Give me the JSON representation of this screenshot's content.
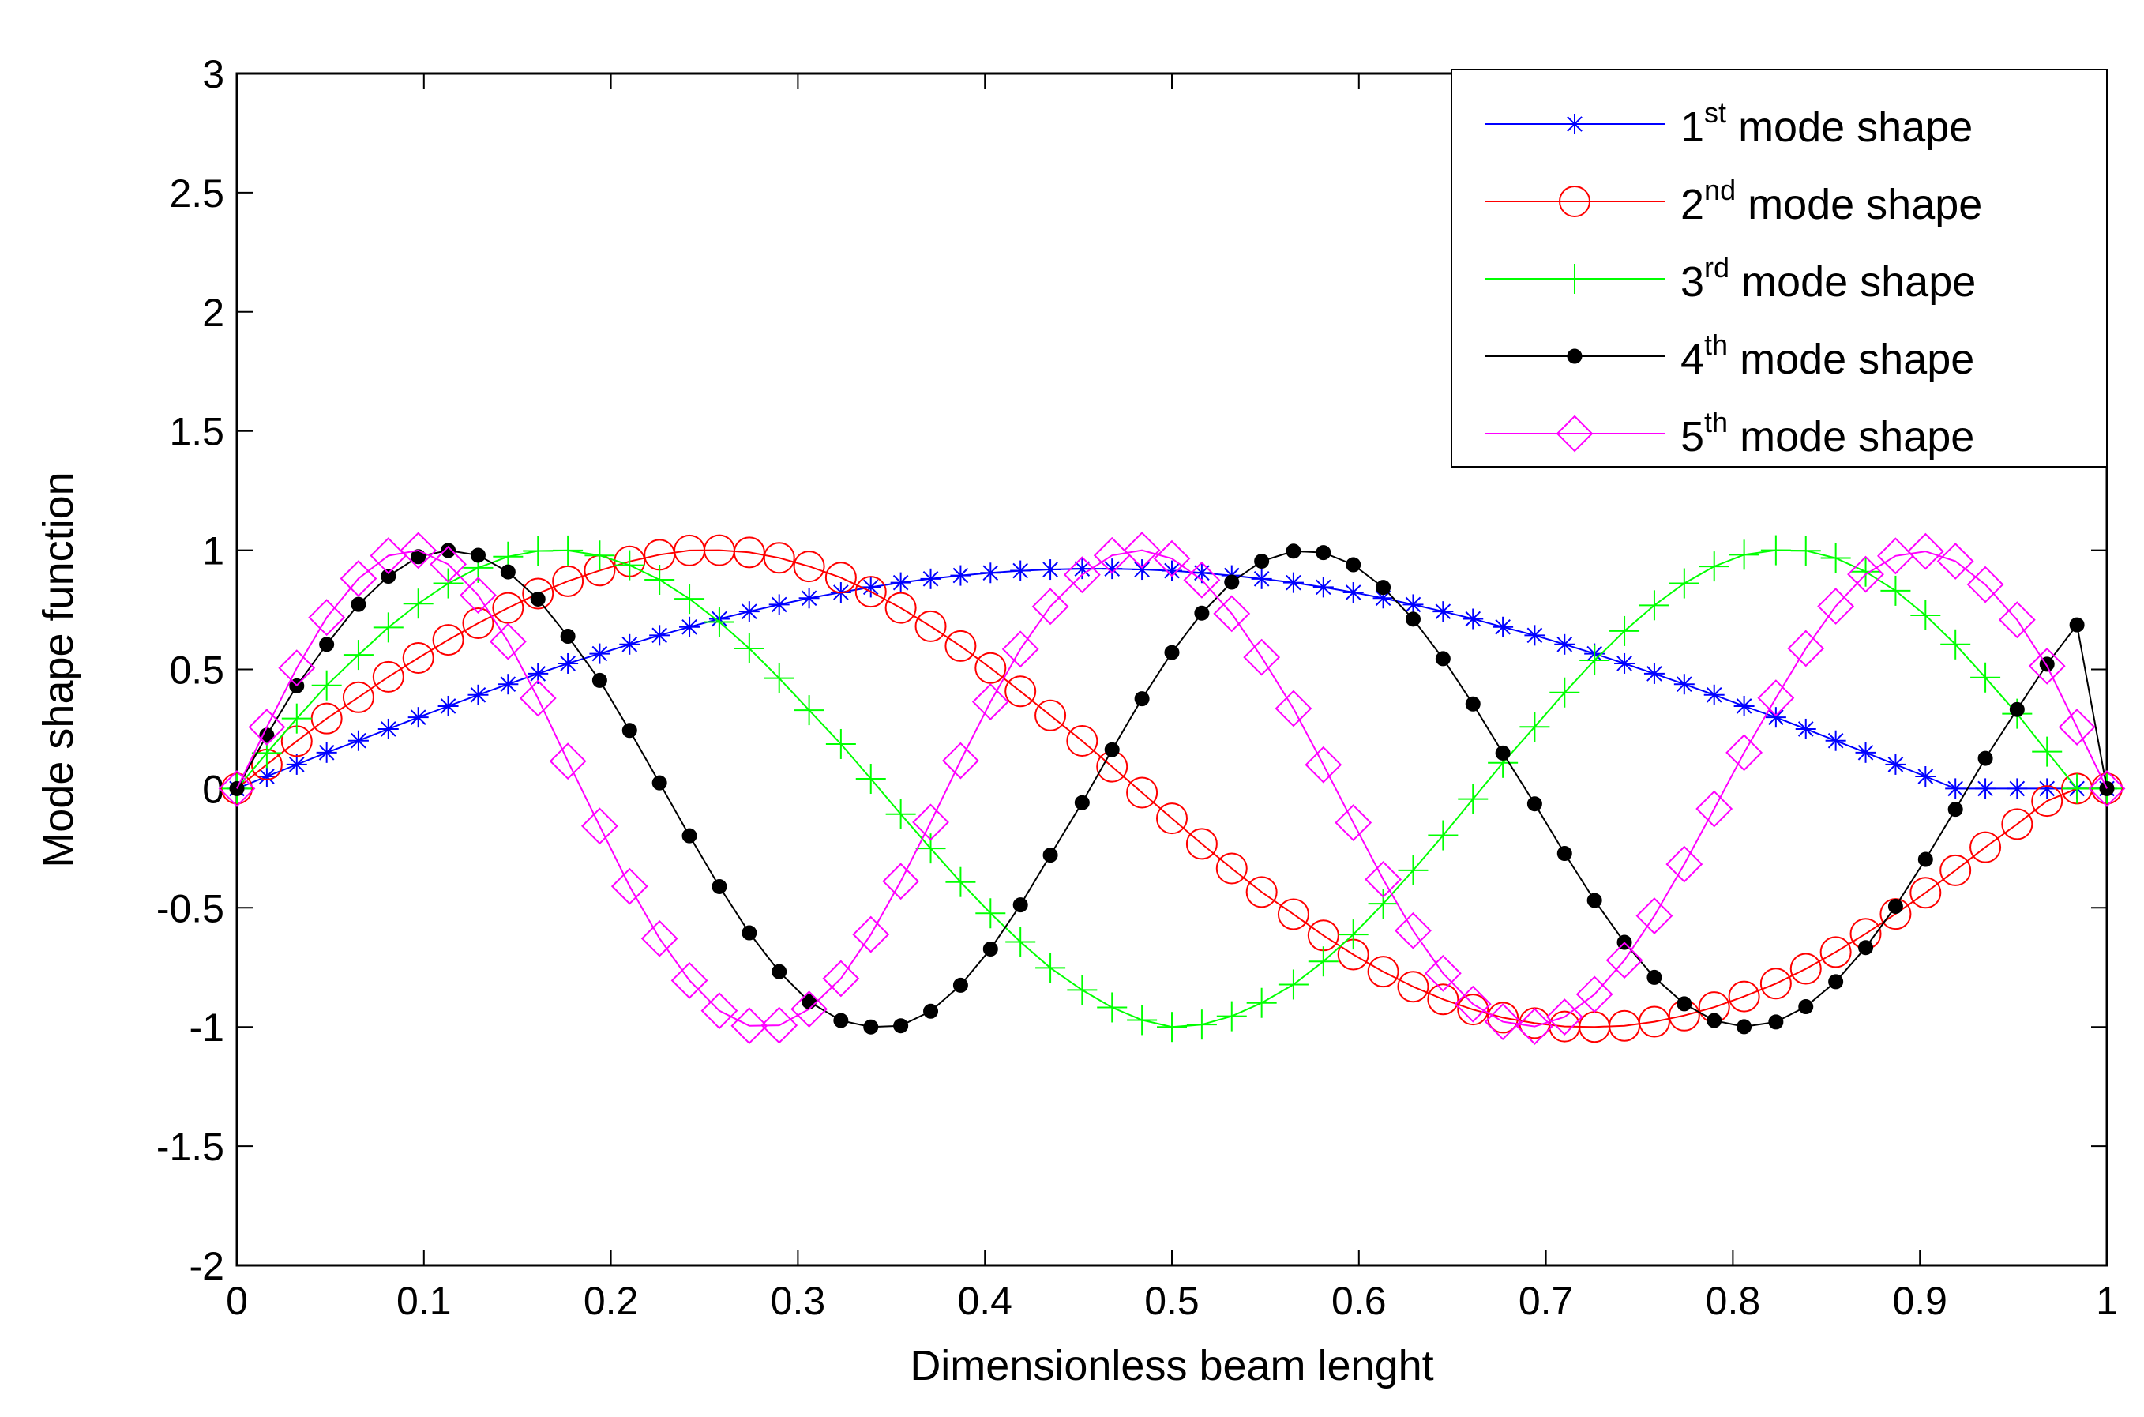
{
  "chart_data": {
    "type": "line",
    "title": "",
    "xlabel": "Dimensionless beam lenght",
    "ylabel": "Mode shape function",
    "xlim": [
      0,
      1
    ],
    "ylim": [
      -2,
      3
    ],
    "xticks": [
      0,
      0.1,
      0.2,
      0.3,
      0.4,
      0.5,
      0.6,
      0.7,
      0.8,
      0.9,
      1
    ],
    "xtick_labels": [
      "0",
      "0.1",
      "0.2",
      "0.3",
      "0.4",
      "0.5",
      "0.6",
      "0.7",
      "0.8",
      "0.9",
      "1"
    ],
    "yticks": [
      -2,
      -1.5,
      -1,
      -0.5,
      0,
      0.5,
      1,
      1.5,
      2,
      2.5,
      3
    ],
    "ytick_labels": [
      "-2",
      "-1.5",
      "-1",
      "-0.5",
      "0",
      "0.5",
      "1",
      "1.5",
      "2",
      "2.5",
      "3"
    ],
    "grid": false,
    "legend_position": "top-right",
    "x": [
      0,
      0.016,
      0.032,
      0.048,
      0.065,
      0.081,
      0.097,
      0.113,
      0.129,
      0.145,
      0.161,
      0.177,
      0.194,
      0.21,
      0.226,
      0.242,
      0.258,
      0.274,
      0.29,
      0.306,
      0.323,
      0.339,
      0.355,
      0.371,
      0.387,
      0.403,
      0.419,
      0.435,
      0.452,
      0.468,
      0.484,
      0.5,
      0.516,
      0.532,
      0.548,
      0.565,
      0.581,
      0.597,
      0.613,
      0.629,
      0.645,
      0.661,
      0.677,
      0.694,
      0.71,
      0.726,
      0.742,
      0.758,
      0.774,
      0.79,
      0.806,
      0.823,
      0.839,
      0.855,
      0.871,
      0.887,
      0.903,
      0.919,
      0.935,
      0.952,
      0.968,
      0.984,
      1
    ],
    "series": [
      {
        "name": "1st mode shape",
        "legend_base": "1",
        "legend_sup": "st",
        "legend_rest": " mode shape",
        "color": "#0000ff",
        "marker": "asterisk",
        "values": [
          0,
          0.051,
          0.101,
          0.151,
          0.201,
          0.25,
          0.299,
          0.346,
          0.393,
          0.438,
          0.482,
          0.525,
          0.566,
          0.605,
          0.643,
          0.678,
          0.712,
          0.743,
          0.772,
          0.799,
          0.823,
          0.845,
          0.864,
          0.88,
          0.894,
          0.905,
          0.914,
          0.919,
          0.922,
          0.922,
          0.919,
          0.914,
          0.905,
          0.894,
          0.88,
          0.864,
          0.845,
          0.823,
          0.799,
          0.772,
          0.743,
          0.712,
          0.678,
          0.643,
          0.605,
          0.566,
          0.525,
          0.482,
          0.438,
          0.393,
          0.346,
          0.299,
          0.25,
          0.201,
          0.151,
          0.101,
          0.051,
          0,
          0,
          0,
          0,
          0,
          0
        ]
      },
      {
        "name": "2nd mode shape",
        "legend_base": "2",
        "legend_sup": "nd",
        "legend_rest": " mode shape",
        "color": "#ff0000",
        "marker": "circle",
        "values": [
          0,
          0.101,
          0.199,
          0.294,
          0.383,
          0.469,
          0.548,
          0.624,
          0.694,
          0.758,
          0.818,
          0.87,
          0.915,
          0.953,
          0.981,
          0.999,
          1.0,
          0.991,
          0.968,
          0.932,
          0.885,
          0.826,
          0.758,
          0.681,
          0.598,
          0.506,
          0.408,
          0.307,
          0.2,
          0.092,
          -0.017,
          -0.125,
          -0.232,
          -0.335,
          -0.434,
          -0.527,
          -0.616,
          -0.696,
          -0.768,
          -0.831,
          -0.884,
          -0.927,
          -0.961,
          -0.984,
          -0.998,
          -1.0,
          -0.995,
          -0.978,
          -0.952,
          -0.917,
          -0.872,
          -0.818,
          -0.756,
          -0.686,
          -0.609,
          -0.526,
          -0.437,
          -0.343,
          -0.246,
          -0.149,
          -0.052,
          0,
          0
        ]
      },
      {
        "name": "3rd mode shape",
        "legend_base": "3",
        "legend_sup": "rd",
        "legend_rest": " mode shape",
        "color": "#00ff00",
        "marker": "plus",
        "values": [
          0,
          0.149,
          0.294,
          0.433,
          0.561,
          0.676,
          0.776,
          0.861,
          0.926,
          0.973,
          0.997,
          0.999,
          0.978,
          0.937,
          0.876,
          0.796,
          0.699,
          0.588,
          0.463,
          0.329,
          0.187,
          0.041,
          -0.107,
          -0.251,
          -0.392,
          -0.523,
          -0.643,
          -0.752,
          -0.845,
          -0.918,
          -0.971,
          -1.0,
          -0.99,
          -0.955,
          -0.899,
          -0.822,
          -0.725,
          -0.612,
          -0.483,
          -0.343,
          -0.196,
          -0.044,
          0.108,
          0.259,
          0.403,
          0.538,
          0.661,
          0.769,
          0.861,
          0.932,
          0.981,
          1.0,
          0.998,
          0.967,
          0.91,
          0.83,
          0.727,
          0.605,
          0.466,
          0.314,
          0.155,
          0,
          0
        ]
      },
      {
        "name": "4th mode shape",
        "legend_base": "4",
        "legend_sup": "th",
        "legend_rest": " mode shape",
        "color": "#000000",
        "marker": "dot",
        "values": [
          0,
          0.224,
          0.431,
          0.605,
          0.773,
          0.891,
          0.973,
          0.999,
          0.979,
          0.909,
          0.795,
          0.639,
          0.454,
          0.244,
          0.024,
          -0.198,
          -0.411,
          -0.605,
          -0.768,
          -0.894,
          -0.973,
          -1.0,
          -0.995,
          -0.934,
          -0.825,
          -0.673,
          -0.488,
          -0.279,
          -0.059,
          0.163,
          0.377,
          0.571,
          0.736,
          0.866,
          0.954,
          0.996,
          0.99,
          0.939,
          0.844,
          0.711,
          0.545,
          0.355,
          0.149,
          -0.064,
          -0.272,
          -0.469,
          -0.645,
          -0.792,
          -0.903,
          -0.973,
          -0.999,
          -0.979,
          -0.915,
          -0.81,
          -0.667,
          -0.494,
          -0.297,
          -0.087,
          0.127,
          0.332,
          0.522,
          0.687,
          0
        ]
      },
      {
        "name": "5th mode shape",
        "legend_base": "5",
        "legend_sup": "th",
        "legend_rest": " mode shape",
        "color": "#ff00ff",
        "marker": "diamond",
        "values": [
          0,
          0.258,
          0.506,
          0.718,
          0.881,
          0.977,
          0.999,
          0.941,
          0.811,
          0.617,
          0.379,
          0.115,
          -0.157,
          -0.41,
          -0.629,
          -0.805,
          -0.932,
          -0.995,
          -0.993,
          -0.925,
          -0.797,
          -0.612,
          -0.389,
          -0.141,
          0.117,
          0.364,
          0.585,
          0.764,
          0.897,
          0.978,
          1.0,
          0.965,
          0.875,
          0.734,
          0.551,
          0.336,
          0.1,
          -0.143,
          -0.381,
          -0.596,
          -0.775,
          -0.904,
          -0.978,
          -0.998,
          -0.958,
          -0.863,
          -0.72,
          -0.534,
          -0.317,
          -0.085,
          0.151,
          0.38,
          0.588,
          0.765,
          0.899,
          0.976,
          0.995,
          0.954,
          0.856,
          0.708,
          0.514,
          0.258,
          0
        ]
      }
    ]
  }
}
